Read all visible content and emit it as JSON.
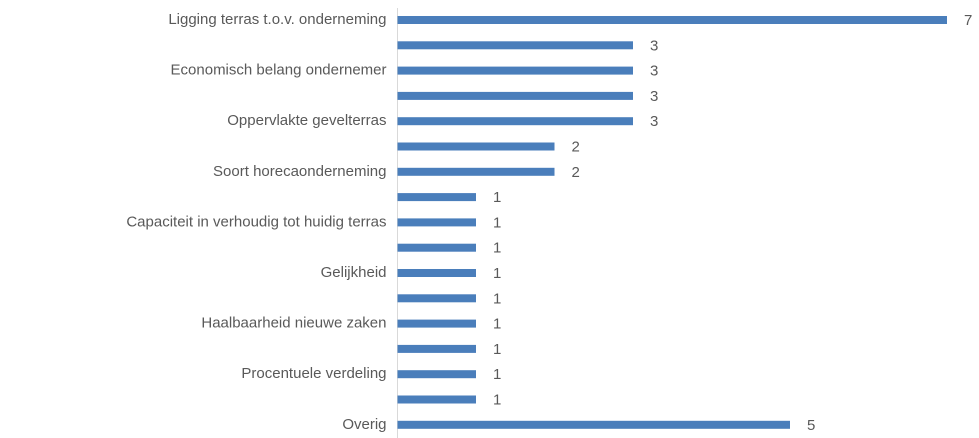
{
  "chart_data": {
    "type": "bar",
    "orientation": "horizontal",
    "categories": [
      "Ligging terras t.o.v. onderneming",
      null,
      "Economisch belang ondernemer",
      null,
      "Oppervlakte gevelterras",
      null,
      "Soort horecaonderneming",
      null,
      "Capaciteit in verhoudig tot huidig terras",
      null,
      "Gelijkheid",
      null,
      "Haalbaarheid nieuwe zaken",
      null,
      "Procentuele verdeling",
      null,
      "Overig"
    ],
    "values": [
      7,
      3,
      3,
      3,
      3,
      2,
      2,
      1,
      1,
      1,
      1,
      1,
      1,
      1,
      1,
      1,
      5
    ],
    "color": "#4a7ebb",
    "xlim": [
      0,
      7
    ]
  }
}
